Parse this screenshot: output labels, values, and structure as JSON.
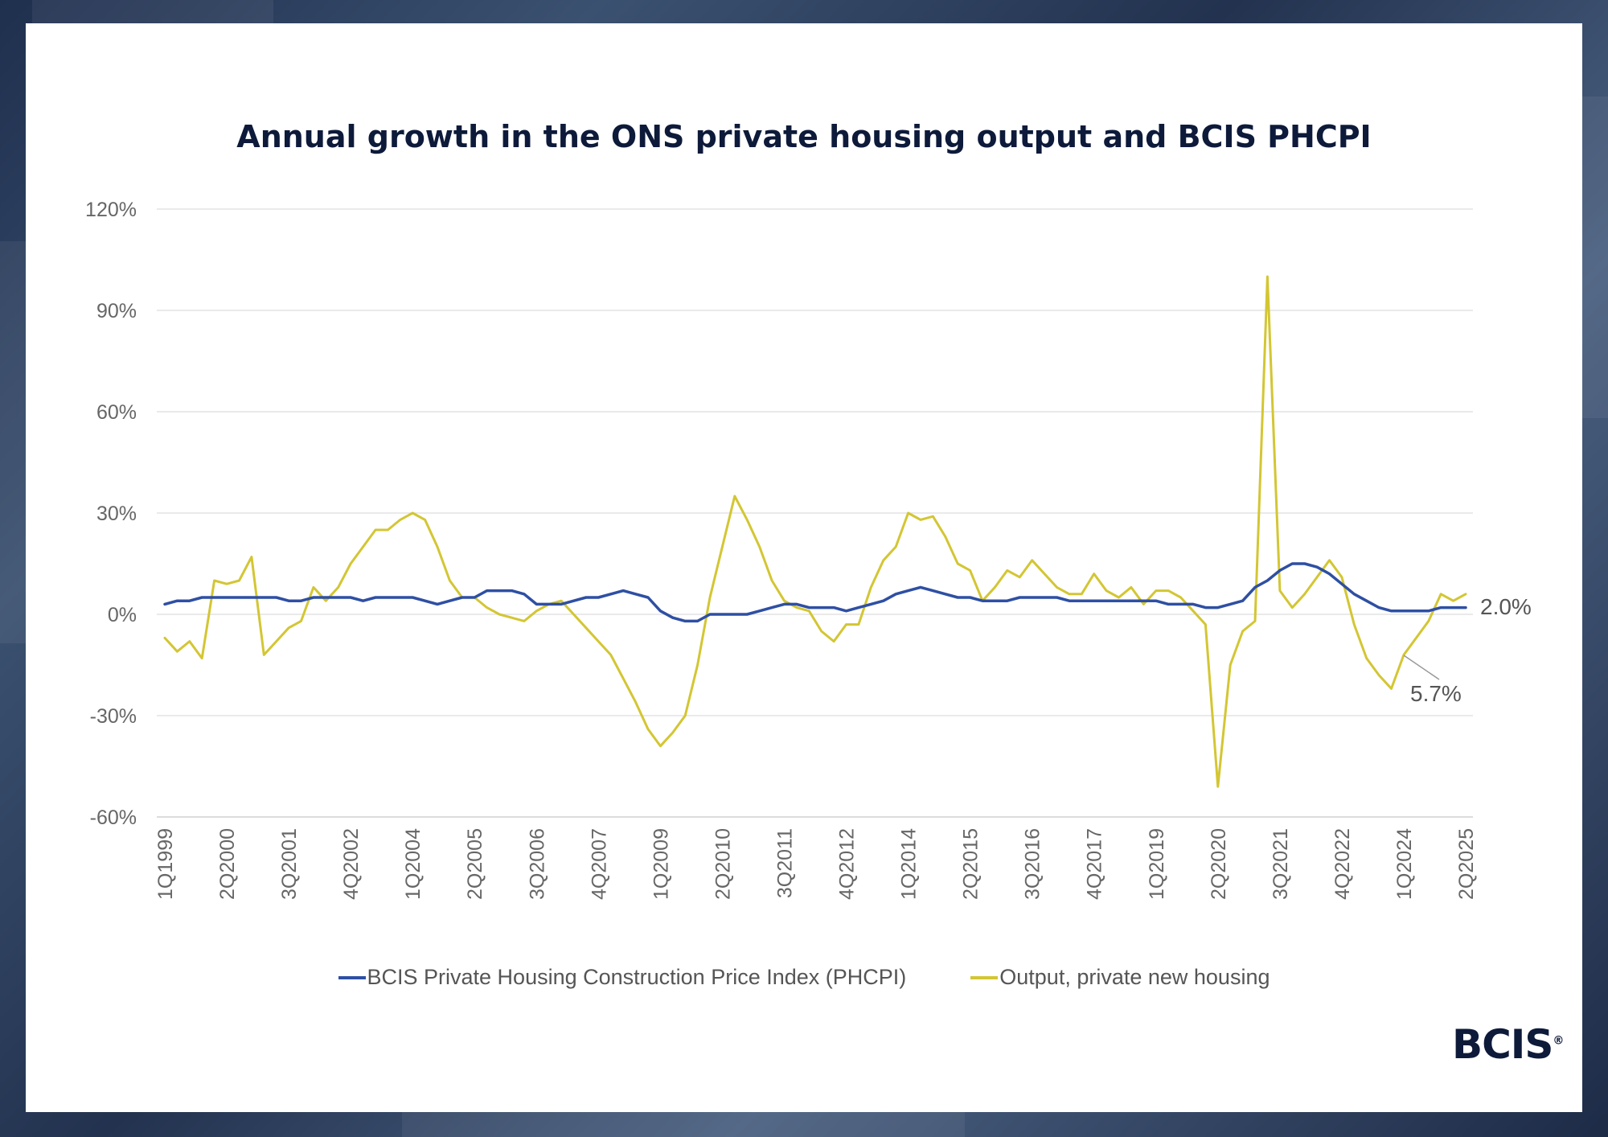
{
  "chart_data": {
    "type": "line",
    "title": "Annual growth in the ONS private housing output and BCIS PHCPI",
    "xlabel": "",
    "ylabel": "",
    "ylim": [
      -60,
      120
    ],
    "yticks": [
      "120%",
      "90%",
      "60%",
      "30%",
      "0%",
      "-30%",
      "-60%"
    ],
    "ytick_values": [
      120,
      90,
      60,
      30,
      0,
      -30,
      -60
    ],
    "grid": true,
    "legend_position": "bottom",
    "x_tick_labels": [
      {
        "label": "1Q1999",
        "index": 0
      },
      {
        "label": "2Q2000",
        "index": 5
      },
      {
        "label": "3Q2001",
        "index": 10
      },
      {
        "label": "4Q2002",
        "index": 15
      },
      {
        "label": "1Q2004",
        "index": 20
      },
      {
        "label": "2Q2005",
        "index": 25
      },
      {
        "label": "3Q2006",
        "index": 30
      },
      {
        "label": "4Q2007",
        "index": 35
      },
      {
        "label": "1Q2009",
        "index": 40
      },
      {
        "label": "2Q2010",
        "index": 45
      },
      {
        "label": "3Q2011",
        "index": 50
      },
      {
        "label": "4Q2012",
        "index": 55
      },
      {
        "label": "1Q2014",
        "index": 60
      },
      {
        "label": "2Q2015",
        "index": 65
      },
      {
        "label": "3Q2016",
        "index": 70
      },
      {
        "label": "4Q2017",
        "index": 75
      },
      {
        "label": "1Q2019",
        "index": 80
      },
      {
        "label": "2Q2020",
        "index": 85
      },
      {
        "label": "3Q2021",
        "index": 90
      },
      {
        "label": "4Q2022",
        "index": 95
      },
      {
        "label": "1Q2024",
        "index": 100
      },
      {
        "label": "2Q2025",
        "index": 105
      }
    ],
    "series": [
      {
        "name": "BCIS Private Housing Construction Price Index (PHCPI)",
        "color": "#2e4fa3",
        "values": [
          3,
          4,
          4,
          5,
          5,
          5,
          5,
          5,
          5,
          5,
          4,
          4,
          5,
          5,
          5,
          5,
          4,
          5,
          5,
          5,
          5,
          4,
          3,
          4,
          5,
          5,
          7,
          7,
          7,
          6,
          3,
          3,
          3,
          4,
          5,
          5,
          6,
          7,
          6,
          5,
          1,
          -1,
          -2,
          -2,
          0,
          0,
          0,
          0,
          1,
          2,
          3,
          3,
          2,
          2,
          2,
          1,
          2,
          3,
          4,
          6,
          7,
          8,
          7,
          6,
          5,
          5,
          4,
          4,
          4,
          5,
          5,
          5,
          5,
          4,
          4,
          4,
          4,
          4,
          4,
          4,
          4,
          3,
          3,
          3,
          2,
          2,
          3,
          4,
          8,
          10,
          13,
          15,
          15,
          14,
          12,
          9,
          6,
          4,
          2,
          1,
          1,
          1,
          1,
          2,
          2,
          2
        ]
      },
      {
        "name": "Output, private new housing",
        "color": "#d3c633",
        "values": [
          -7,
          -11,
          -8,
          -13,
          10,
          9,
          10,
          17,
          -12,
          -8,
          -4,
          -2,
          8,
          4,
          8,
          15,
          20,
          25,
          25,
          28,
          30,
          28,
          20,
          10,
          5,
          5,
          2,
          0,
          -1,
          -2,
          1,
          3,
          4,
          0,
          -4,
          -8,
          -12,
          -19,
          -26,
          -34,
          -39,
          -35,
          -30,
          -15,
          5,
          20,
          35,
          28,
          20,
          10,
          4,
          2,
          1,
          -5,
          -8,
          -3,
          -3,
          8,
          16,
          20,
          30,
          28,
          29,
          23,
          15,
          13,
          4,
          8,
          13,
          11,
          16,
          12,
          8,
          6,
          6,
          12,
          7,
          5,
          8,
          3,
          7,
          7,
          5,
          1,
          -3,
          -51,
          -15,
          -5,
          -2,
          100,
          7,
          2,
          6,
          11,
          16,
          11,
          -3,
          -13,
          -18,
          -22,
          -12,
          -7,
          -2,
          6,
          4,
          6
        ]
      }
    ],
    "annotations": [
      {
        "text": "2.0%"
      },
      {
        "text": "5.7%"
      }
    ]
  },
  "logo": {
    "text": "BCIS",
    "mark": "®"
  }
}
